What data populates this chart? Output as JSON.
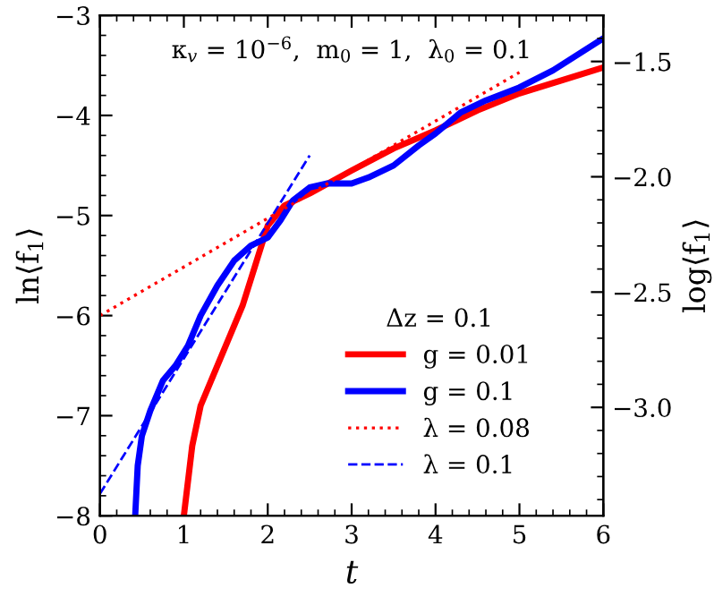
{
  "chart_data": {
    "type": "line",
    "xlabel": "t",
    "ylabel": "ln⟨f$_{1}$⟩",
    "y2label": "log⟨f$_{1}$⟩",
    "legend_title": "Δz = 0.1",
    "annotations": [
      "κ$_{v}$ = 10$^{−6}$,  m$_{0}$ = 1,  λ$_{0}$ = 0.1"
    ],
    "xlim": [
      0,
      6
    ],
    "xticks": [
      0,
      1,
      2,
      3,
      4,
      5,
      6
    ],
    "ylim": [
      -8,
      -3
    ],
    "yticks": [
      {
        "value": -8,
        "label": "−8"
      },
      {
        "value": -7,
        "label": "−7"
      },
      {
        "value": -6,
        "label": "−6"
      },
      {
        "value": -5,
        "label": "−5"
      },
      {
        "value": -4,
        "label": "−4"
      },
      {
        "value": -3,
        "label": "−3"
      }
    ],
    "y2lim": [
      -3.47,
      -1.3
    ],
    "y2ticks": [
      {
        "value": -3.0,
        "label": "−3.0"
      },
      {
        "value": -2.5,
        "label": "−2.5"
      },
      {
        "value": -2.0,
        "label": "−2.0"
      },
      {
        "value": -1.5,
        "label": "−1.5"
      }
    ],
    "grid": false,
    "legend": "bottom right",
    "series": [
      {
        "name": "g = 0.01",
        "color": "#ff0000",
        "line_style": "solid",
        "x": [
          1.0,
          1.1,
          1.2,
          1.35,
          1.5,
          1.7,
          1.85,
          2.0,
          2.2,
          2.5,
          3.0,
          3.5,
          4.0,
          4.5,
          5.0,
          5.5,
          6.0
        ],
        "values": [
          -8,
          -7.3,
          -6.9,
          -6.6,
          -6.3,
          -5.9,
          -5.5,
          -5.1,
          -4.9,
          -4.78,
          -4.55,
          -4.33,
          -4.15,
          -3.95,
          -3.78,
          -3.65,
          -3.52
        ]
      },
      {
        "name": "g = 0.1",
        "color": "#0000ff",
        "line_style": "solid",
        "x": [
          0.42,
          0.45,
          0.5,
          0.6,
          0.75,
          0.9,
          1.05,
          1.2,
          1.4,
          1.6,
          1.8,
          2.0,
          2.15,
          2.3,
          2.5,
          2.7,
          3.0,
          3.2,
          3.5,
          3.8,
          4.0,
          4.3,
          4.6,
          5.0,
          5.4,
          6.0
        ],
        "values": [
          -8,
          -7.5,
          -7.2,
          -6.95,
          -6.65,
          -6.5,
          -6.3,
          -6.0,
          -5.7,
          -5.45,
          -5.3,
          -5.22,
          -5.05,
          -4.85,
          -4.72,
          -4.68,
          -4.68,
          -4.62,
          -4.5,
          -4.3,
          -4.18,
          -3.97,
          -3.85,
          -3.72,
          -3.55,
          -3.23
        ]
      },
      {
        "name": "λ = 0.08",
        "color": "#ff0000",
        "line_style": "dotted",
        "x": [
          0,
          5.0
        ],
        "values": [
          -6.0,
          -3.57
        ]
      },
      {
        "name": "λ = 0.1",
        "color": "#0000ff",
        "line_style": "dashed",
        "x": [
          0,
          2.5
        ],
        "values": [
          -7.78,
          -4.4
        ]
      }
    ]
  }
}
